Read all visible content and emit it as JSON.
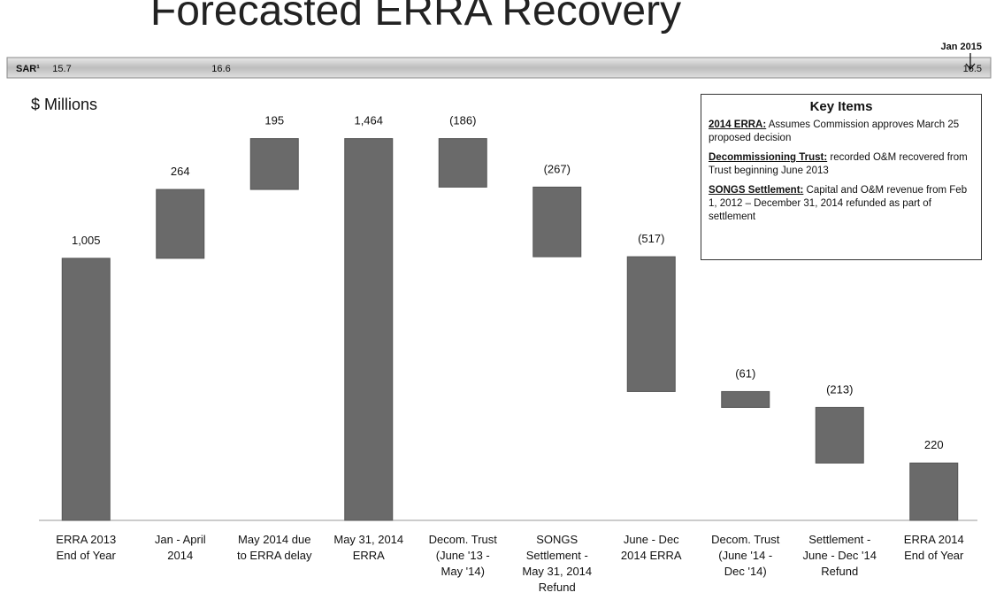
{
  "chart_data": {
    "type": "waterfall",
    "title": "Forecasted ERRA Recovery",
    "y_label": "$ Millions",
    "sar_label": "SAR¹",
    "sar_values": [
      "15.7",
      "16.6",
      "16.5"
    ],
    "annotation": "Jan 2015",
    "categories": [
      "ERRA 2013\nEnd of Year",
      "Jan - April\n2014",
      "May 2014 due\nto ERRA delay",
      "May 31, 2014\nERRA",
      "Decom. Trust\n(June '13 -\nMay '14)",
      "SONGS\nSettlement -\nMay 31, 2014\nRefund",
      "June - Dec\n2014 ERRA",
      "Decom. Trust\n(June '14 -\nDec '14)",
      "Settlement -\nJune - Dec '14\nRefund",
      "ERRA 2014\nEnd of Year"
    ],
    "values": [
      1005,
      264,
      195,
      1464,
      -186,
      -267,
      -517,
      -61,
      -213,
      220
    ],
    "value_labels": [
      "1,005",
      "264",
      "195",
      "1,464",
      "(186)",
      "(267)",
      "(517)",
      "(61)",
      "(213)",
      "220"
    ],
    "total_indices": [
      0,
      3,
      9
    ],
    "color": "#6a6a6a",
    "ylim": [
      0,
      1500
    ]
  },
  "key_items": {
    "title": "Key Items",
    "items": [
      {
        "lead": "2014 ERRA:",
        "text": " Assumes Commission approves March 25 proposed decision"
      },
      {
        "lead": "Decommissioning Trust:",
        "text": " recorded O&M recovered from Trust beginning June 2013"
      },
      {
        "lead": "SONGS Settlement:",
        "text": " Capital and O&M revenue from Feb 1, 2012 – December 31, 2014 refunded as part of settlement"
      }
    ]
  }
}
